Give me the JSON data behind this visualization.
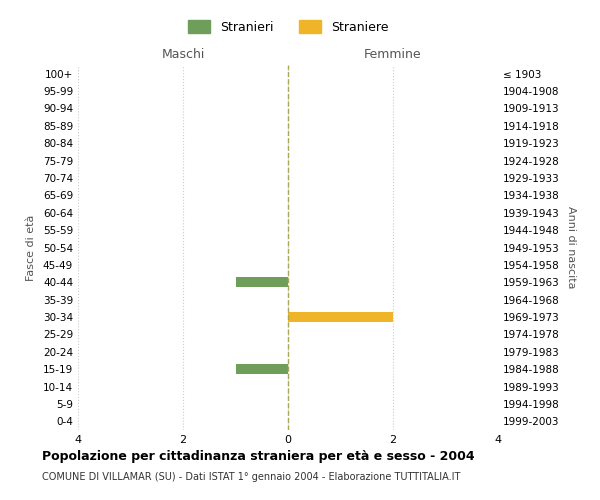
{
  "age_groups": [
    "100+",
    "95-99",
    "90-94",
    "85-89",
    "80-84",
    "75-79",
    "70-74",
    "65-69",
    "60-64",
    "55-59",
    "50-54",
    "45-49",
    "40-44",
    "35-39",
    "30-34",
    "25-29",
    "20-24",
    "15-19",
    "10-14",
    "5-9",
    "0-4"
  ],
  "birth_years": [
    "≤ 1903",
    "1904-1908",
    "1909-1913",
    "1914-1918",
    "1919-1923",
    "1924-1928",
    "1929-1933",
    "1934-1938",
    "1939-1943",
    "1944-1948",
    "1949-1953",
    "1954-1958",
    "1959-1963",
    "1964-1968",
    "1969-1973",
    "1974-1978",
    "1979-1983",
    "1984-1988",
    "1989-1993",
    "1994-1998",
    "1999-2003"
  ],
  "maschi_values": [
    0,
    0,
    0,
    0,
    0,
    0,
    0,
    0,
    0,
    0,
    0,
    0,
    1,
    0,
    0,
    0,
    0,
    1,
    0,
    0,
    0
  ],
  "femmine_values": [
    0,
    0,
    0,
    0,
    0,
    0,
    0,
    0,
    0,
    0,
    0,
    0,
    0,
    0,
    2,
    0,
    0,
    0,
    0,
    0,
    0
  ],
  "color_maschi": "#6f9e5b",
  "color_femmine": "#f0b429",
  "title": "Popolazione per cittadinanza straniera per età e sesso - 2004",
  "subtitle": "COMUNE DI VILLAMAR (SU) - Dati ISTAT 1° gennaio 2004 - Elaborazione TUTTITALIA.IT",
  "xlabel_left": "Maschi",
  "xlabel_right": "Femmine",
  "ylabel_left": "Fasce di età",
  "ylabel_right": "Anni di nascita",
  "legend_maschi": "Stranieri",
  "legend_femmine": "Straniere",
  "xlim": 4,
  "background_color": "#ffffff",
  "grid_color": "#cccccc"
}
